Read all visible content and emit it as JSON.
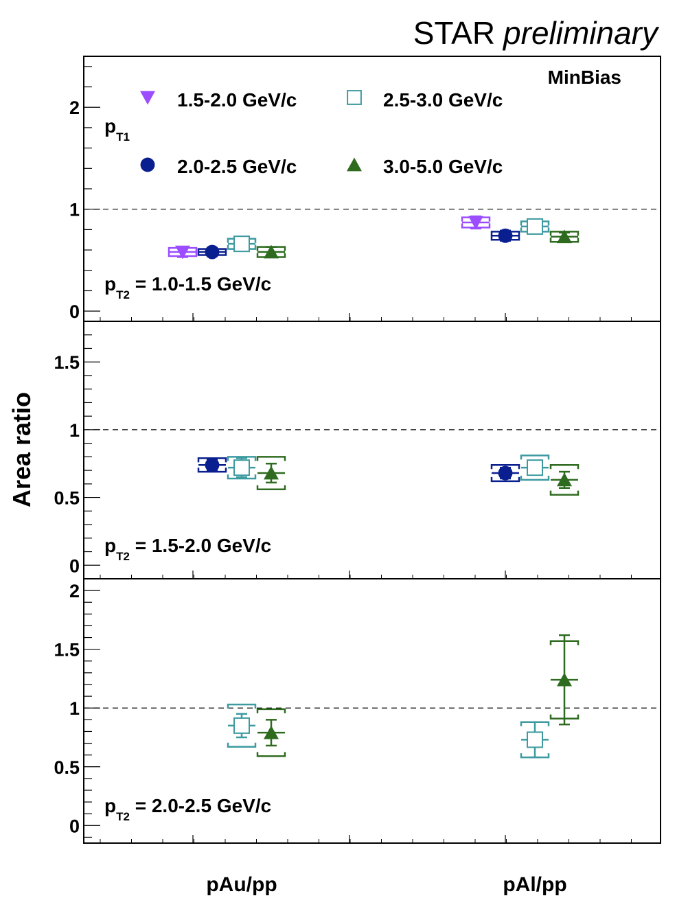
{
  "header": {
    "experiment": "STAR",
    "status": "preliminary"
  },
  "legend": {
    "pt1_symbol": "p",
    "pt1_sub": "T1",
    "event_class": "MinBias",
    "entries": [
      {
        "label": "1.5-2.0 GeV/c",
        "marker": "triangle-down",
        "color": "#9b4dff"
      },
      {
        "label": "2.5-3.0 GeV/c",
        "marker": "open-square",
        "color": "#3d9aa0"
      },
      {
        "label": "2.0-2.5 GeV/c",
        "marker": "circle",
        "color": "#0a1f8f"
      },
      {
        "label": "3.0-5.0 GeV/c",
        "marker": "triangle-up",
        "color": "#2e6b1f"
      }
    ]
  },
  "chart_data": {
    "type": "scatter",
    "ylabel": "Area ratio",
    "categories": [
      "pAu/pp",
      "pAl/pp"
    ],
    "reference_line": 1,
    "panels": [
      {
        "label_symbol": "p",
        "label_sub": "T2",
        "label_text": " = 1.0-1.5 GeV/c",
        "ylim": [
          -0.1,
          2.5
        ],
        "yticks": [
          0,
          1,
          2
        ],
        "series": [
          {
            "pt1": "1.5-2.0 GeV/c",
            "color": "#9b4dff",
            "marker": "triangle-down",
            "points": [
              {
                "category": "pAu/pp",
                "y": 0.58,
                "stat": 0.05,
                "sys": 0.04
              },
              {
                "category": "pAl/pp",
                "y": 0.87,
                "stat": 0.06,
                "sys": 0.05
              }
            ]
          },
          {
            "pt1": "2.0-2.5 GeV/c",
            "color": "#0a1f8f",
            "marker": "circle",
            "points": [
              {
                "category": "pAu/pp",
                "y": 0.58,
                "stat": 0.04,
                "sys": 0.03
              },
              {
                "category": "pAl/pp",
                "y": 0.74,
                "stat": 0.05,
                "sys": 0.04
              }
            ]
          },
          {
            "pt1": "2.5-3.0 GeV/c",
            "color": "#3d9aa0",
            "marker": "open-square",
            "points": [
              {
                "category": "pAu/pp",
                "y": 0.66,
                "stat": 0.05,
                "sys": 0.05
              },
              {
                "category": "pAl/pp",
                "y": 0.83,
                "stat": 0.05,
                "sys": 0.05
              }
            ]
          },
          {
            "pt1": "3.0-5.0 GeV/c",
            "color": "#2e6b1f",
            "marker": "triangle-up",
            "points": [
              {
                "category": "pAu/pp",
                "y": 0.58,
                "stat": 0.05,
                "sys": 0.05
              },
              {
                "category": "pAl/pp",
                "y": 0.73,
                "stat": 0.04,
                "sys": 0.05
              }
            ]
          }
        ]
      },
      {
        "label_symbol": "p",
        "label_sub": "T2",
        "label_text": " = 1.5-2.0 GeV/c",
        "ylim": [
          -0.1,
          1.8
        ],
        "yticks": [
          0,
          0.5,
          1,
          1.5
        ],
        "series": [
          {
            "pt1": "2.0-2.5 GeV/c",
            "color": "#0a1f8f",
            "marker": "circle",
            "points": [
              {
                "category": "pAu/pp",
                "y": 0.74,
                "stat": 0.04,
                "sys": 0.05
              },
              {
                "category": "pAl/pp",
                "y": 0.68,
                "stat": 0.04,
                "sys": 0.06
              }
            ]
          },
          {
            "pt1": "2.5-3.0 GeV/c",
            "color": "#3d9aa0",
            "marker": "open-square",
            "points": [
              {
                "category": "pAu/pp",
                "y": 0.72,
                "stat": 0.07,
                "sys": 0.08
              },
              {
                "category": "pAl/pp",
                "y": 0.72,
                "stat": 0.05,
                "sys": 0.09
              }
            ]
          },
          {
            "pt1": "3.0-5.0 GeV/c",
            "color": "#2e6b1f",
            "marker": "triangle-up",
            "points": [
              {
                "category": "pAu/pp",
                "y": 0.68,
                "stat": 0.07,
                "sys": 0.12
              },
              {
                "category": "pAl/pp",
                "y": 0.63,
                "stat": 0.06,
                "sys": 0.11
              }
            ]
          }
        ]
      },
      {
        "label_symbol": "p",
        "label_sub": "T2",
        "label_text": " = 2.0-2.5 GeV/c",
        "ylim": [
          -0.15,
          2.1
        ],
        "yticks": [
          0,
          0.5,
          1,
          1.5,
          2
        ],
        "series": [
          {
            "pt1": "2.5-3.0 GeV/c",
            "color": "#3d9aa0",
            "marker": "open-square",
            "points": [
              {
                "category": "pAu/pp",
                "y": 0.85,
                "stat": 0.1,
                "sys": 0.18
              },
              {
                "category": "pAl/pp",
                "y": 0.73,
                "stat": 0.15,
                "sys": 0.15
              }
            ]
          },
          {
            "pt1": "3.0-5.0 GeV/c",
            "color": "#2e6b1f",
            "marker": "triangle-up",
            "points": [
              {
                "category": "pAu/pp",
                "y": 0.79,
                "stat": 0.11,
                "sys": 0.2
              },
              {
                "category": "pAl/pp",
                "y": 1.24,
                "stat": 0.38,
                "sys": 0.33
              }
            ]
          }
        ]
      }
    ]
  }
}
